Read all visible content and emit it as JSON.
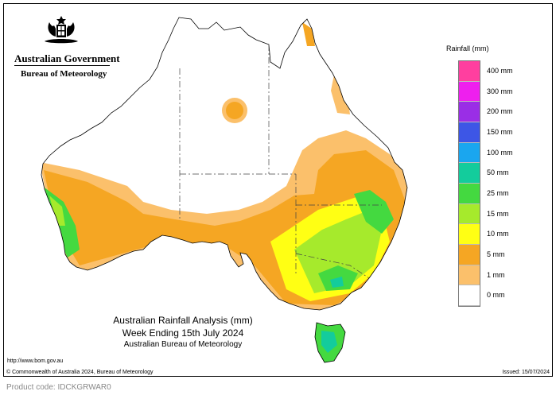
{
  "header": {
    "government": "Australian Government",
    "bureau": "Bureau of Meteorology"
  },
  "icons": {
    "crest": "coat-of-arms-icon"
  },
  "legend": {
    "title": "Rainfall (mm)",
    "items": [
      {
        "label": "400 mm",
        "color": "#ff3f9f"
      },
      {
        "label": "300 mm",
        "color": "#ee1fee"
      },
      {
        "label": "200 mm",
        "color": "#9a2ee6"
      },
      {
        "label": "150 mm",
        "color": "#3d56e6"
      },
      {
        "label": "100 mm",
        "color": "#1aa6ef"
      },
      {
        "label": "50 mm",
        "color": "#13cc9c"
      },
      {
        "label": "25 mm",
        "color": "#44d940"
      },
      {
        "label": "15 mm",
        "color": "#a6ea2c"
      },
      {
        "label": "10 mm",
        "color": "#ffff14"
      },
      {
        "label": "5 mm",
        "color": "#f5a623"
      },
      {
        "label": "1 mm",
        "color": "#fbc06b"
      },
      {
        "label": "0 mm",
        "color": "#ffffff"
      }
    ]
  },
  "caption": {
    "line1": "Australian Rainfall Analysis (mm)",
    "line2": "Week Ending 15th July 2024",
    "line3": "Australian Bureau of Meteorology"
  },
  "footer": {
    "url": "http://www.bom.gov.au",
    "copyright": "© Commonwealth of Australia 2024, Bureau of Meteorology",
    "issued": "Issued: 15/07/2024",
    "product": "Product code: IDCKGRWAR0"
  }
}
